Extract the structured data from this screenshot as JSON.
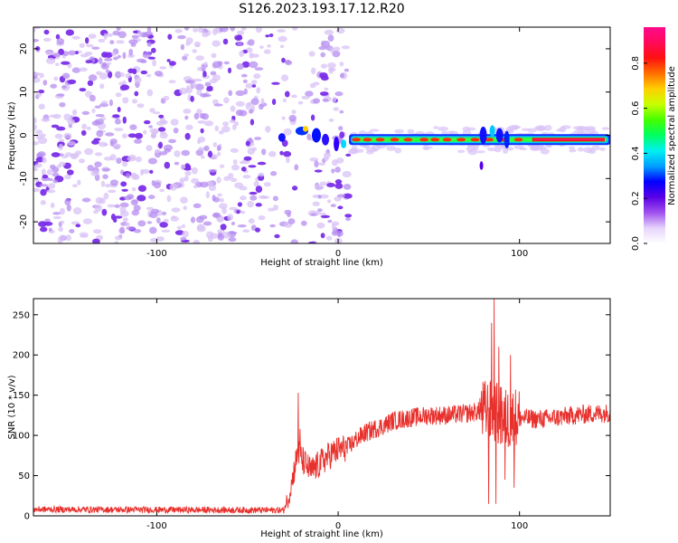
{
  "title": "S126.2023.193.17.12.R20",
  "colors": {
    "snr_line": "#e8302c",
    "speckle_light": "#d8c2f6",
    "speckle_mid": "#b58cf0",
    "speckle_dark": "#7a2ee8"
  },
  "chart_data": [
    {
      "type": "heatmap",
      "xlabel": "Height of straight line (km)",
      "ylabel": "Frequency (Hz)",
      "xlim": [
        -168,
        150
      ],
      "ylim": [
        -25,
        25
      ],
      "xticks": [
        {
          "v": -100,
          "label": "-100"
        },
        {
          "v": 0,
          "label": "0"
        },
        {
          "v": 100,
          "label": "100"
        }
      ],
      "yticks": [
        {
          "v": -20,
          "label": "-20"
        },
        {
          "v": -10,
          "label": "-10"
        },
        {
          "v": 0,
          "label": "0"
        },
        {
          "v": 10,
          "label": "10"
        },
        {
          "v": 20,
          "label": "20"
        }
      ],
      "colorbar": {
        "label": "Normalized spectral amplitude",
        "range": [
          0,
          0.96
        ],
        "ticks": [
          {
            "v": 0.0,
            "label": "0.0"
          },
          {
            "v": 0.2,
            "label": "0.2"
          },
          {
            "v": 0.4,
            "label": "0.4"
          },
          {
            "v": 0.6,
            "label": "0.6"
          },
          {
            "v": 0.8,
            "label": "0.8"
          }
        ],
        "colors": [
          "#ffffff",
          "#e6d4fb",
          "#a050ee",
          "#5a00e6",
          "#0000ff",
          "#00a0ff",
          "#00f0f0",
          "#00ff60",
          "#44ff00",
          "#c8ff00",
          "#ffd000",
          "#ff7000",
          "#ff1010",
          "#ff0a5a",
          "#ff0a8c"
        ]
      },
      "features": {
        "noise_region_x": [
          -168,
          6
        ],
        "signal_band": {
          "x_start": 6,
          "x_end": 150,
          "freq": -1
        }
      }
    },
    {
      "type": "line",
      "xlabel": "Height of straight line (km)",
      "ylabel": "SNR (10 * v/v)",
      "xlim": [
        -168,
        150
      ],
      "ylim": [
        0,
        270
      ],
      "xticks": [
        {
          "v": -100,
          "label": "-100"
        },
        {
          "v": 0,
          "label": "0"
        },
        {
          "v": 100,
          "label": "100"
        }
      ],
      "yticks": [
        {
          "v": 0,
          "label": "0"
        },
        {
          "v": 50,
          "label": "50"
        },
        {
          "v": 100,
          "label": "100"
        },
        {
          "v": 150,
          "label": "150"
        },
        {
          "v": 200,
          "label": "200"
        },
        {
          "v": 250,
          "label": "250"
        }
      ],
      "trend": {
        "x": [
          -168,
          -30,
          -27,
          -24,
          -22,
          -20,
          -15,
          -10,
          -5,
          0,
          5,
          10,
          15,
          20,
          25,
          30,
          40,
          50,
          60,
          70,
          78,
          82,
          85,
          87,
          90,
          95,
          100,
          110,
          120,
          130,
          140,
          150
        ],
        "y": [
          8,
          7,
          25,
          60,
          80,
          70,
          55,
          65,
          75,
          82,
          85,
          95,
          103,
          108,
          112,
          118,
          122,
          125,
          125,
          127,
          130,
          130,
          130,
          128,
          120,
          120,
          122,
          120,
          122,
          125,
          127,
          128
        ]
      },
      "peaks": {
        "x": [
          -22,
          -21,
          83,
          84.5,
          86,
          87,
          88.5,
          90,
          92,
          95,
          97
        ],
        "y": [
          153,
          108,
          15,
          240,
          270,
          15,
          210,
          160,
          45,
          200,
          35
        ]
      }
    }
  ]
}
